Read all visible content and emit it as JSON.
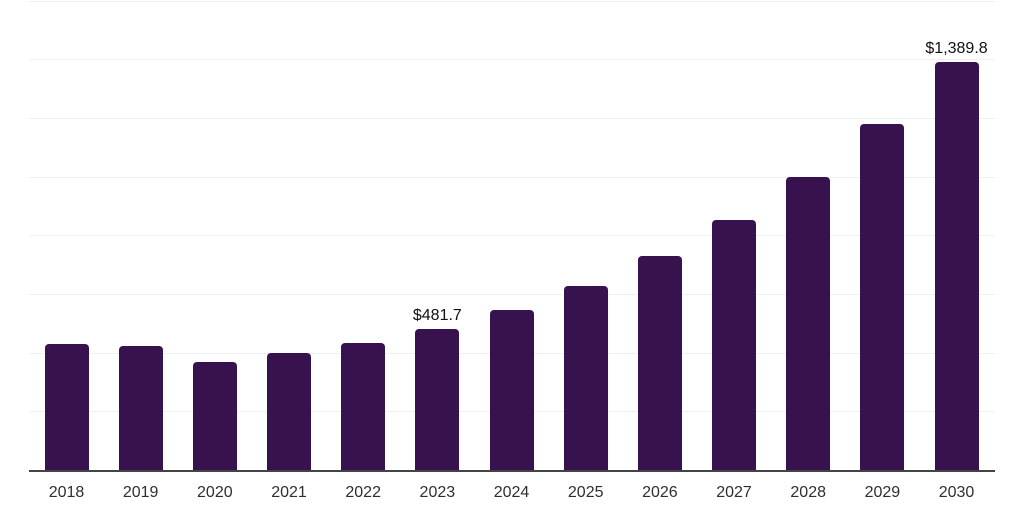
{
  "chart_data": {
    "type": "bar",
    "title": "",
    "xlabel": "",
    "ylabel": "",
    "categories": [
      "2018",
      "2019",
      "2020",
      "2021",
      "2022",
      "2023",
      "2024",
      "2025",
      "2026",
      "2027",
      "2028",
      "2029",
      "2030"
    ],
    "values": [
      428,
      424,
      367,
      398,
      432,
      481.7,
      545,
      628,
      730,
      851,
      999,
      1178,
      1389.8
    ],
    "data_labels": {
      "2023": "$481.7",
      "2030": "$1,389.8"
    },
    "ylim": [
      0,
      1600
    ],
    "gridline_step": 200,
    "grid": "horizontal-only",
    "legend": "none",
    "colors": {
      "bar": "#37124E",
      "gridline": "#efefef",
      "axis_line": "#444444",
      "tick_label": "#2e2e2e",
      "data_label": "#111111",
      "background": "#ffffff"
    }
  }
}
